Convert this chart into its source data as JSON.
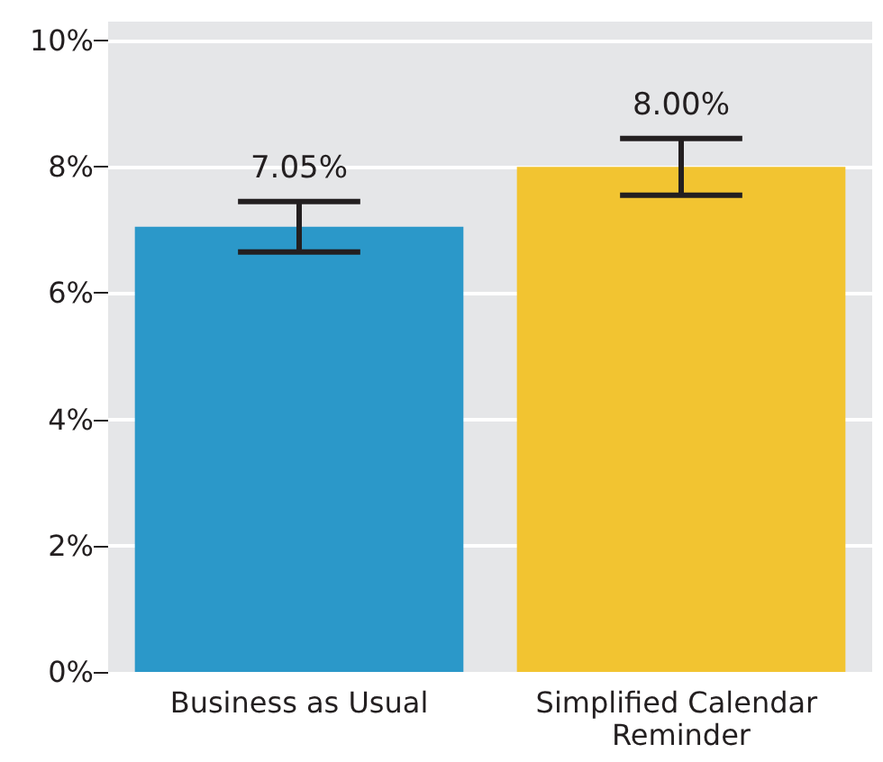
{
  "chart_data": {
    "type": "bar",
    "categories": [
      "Business as Usual",
      "Simplified Calendar Reminder"
    ],
    "values": [
      7.05,
      8.0
    ],
    "colors": [
      "#2b98c9",
      "#f2c431"
    ],
    "errors": [
      0.4,
      0.45
    ],
    "value_labels": [
      "7.05%",
      "8.00%"
    ],
    "ylim": [
      0,
      10.3
    ],
    "yticks": [
      {
        "value": 0,
        "label": "0%"
      },
      {
        "value": 2,
        "label": "2%"
      },
      {
        "value": 4,
        "label": "4%"
      },
      {
        "value": 6,
        "label": "6%"
      },
      {
        "value": 8,
        "label": "8%"
      },
      {
        "value": 10,
        "label": "10%"
      }
    ],
    "grid": "y"
  }
}
